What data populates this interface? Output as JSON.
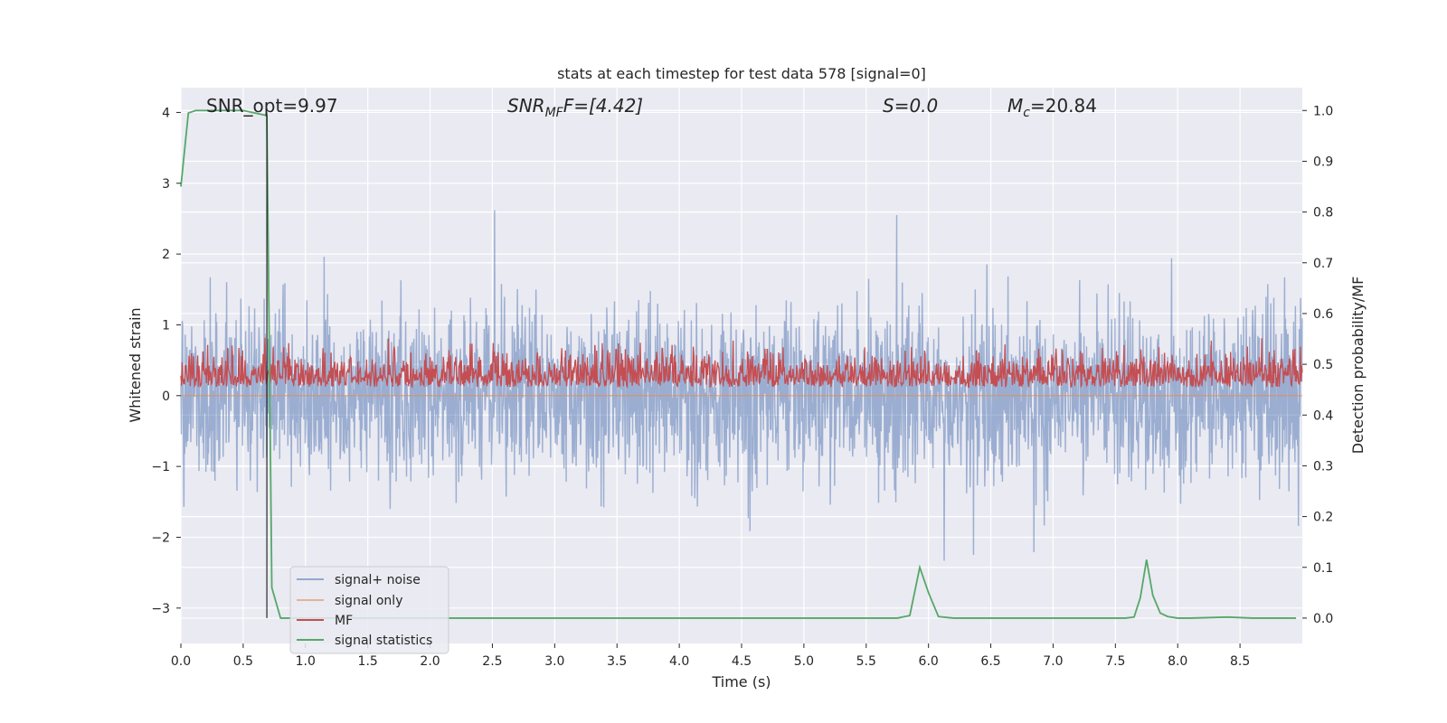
{
  "chart_data": {
    "type": "line",
    "title": "stats at each timestep for test data 578 [signal=0]",
    "xlabel": "Time (s)",
    "ylabel_left": "Whitened strain",
    "ylabel_right": "Detection probability/MF",
    "xlim": [
      0.0,
      9.0
    ],
    "ylim_left": [
      -3.5,
      4.35
    ],
    "ylim_right": [
      -0.05,
      1.045
    ],
    "x_ticks": [
      "0.0",
      "0.5",
      "1.0",
      "1.5",
      "2.0",
      "2.5",
      "3.0",
      "3.5",
      "4.0",
      "4.5",
      "5.0",
      "5.5",
      "6.0",
      "6.5",
      "7.0",
      "7.5",
      "8.0",
      "8.5"
    ],
    "y_left_ticks": [
      "−3",
      "−2",
      "−1",
      "0",
      "1",
      "2",
      "3",
      "4"
    ],
    "y_right_ticks": [
      "0.0",
      "0.1",
      "0.2",
      "0.3",
      "0.4",
      "0.5",
      "0.6",
      "0.7",
      "0.8",
      "0.9",
      "1.0"
    ],
    "grid": true,
    "annotations": [
      {
        "id": "snr_opt",
        "text": "SNR_opt=9.97"
      },
      {
        "id": "snr_mf",
        "text": "SNR",
        "sub": "MF",
        "suffix": "F=[4.42]"
      },
      {
        "id": "s",
        "text": "S=0.0"
      },
      {
        "id": "mc",
        "text": "M",
        "sub": "c",
        "suffix": "=20.84"
      }
    ],
    "vertical_marker_x": 0.69,
    "legend": {
      "placement": "lower-left",
      "entries": [
        {
          "label": "signal+ noise",
          "color": "#4c72b0"
        },
        {
          "label": "signal only",
          "color": "#dd8452"
        },
        {
          "label": "MF",
          "color": "#c44e52"
        },
        {
          "label": "signal statistics",
          "color": "#55a868"
        }
      ]
    },
    "series": [
      {
        "name": "signal+ noise",
        "axis": "left",
        "color": "#4c72b0",
        "alpha": 0.5,
        "description_values": "noise approximately in [-3.2, 4.0], centered near 0, std ~0.9"
      },
      {
        "name": "signal only",
        "axis": "left",
        "color": "#dd8452",
        "values_constant": 0.0
      },
      {
        "name": "MF",
        "axis": "right",
        "color": "#c44e52",
        "description_values": "band approximately between 0.45 and 0.58, peaks near 0.61"
      },
      {
        "name": "signal statistics",
        "axis": "right",
        "color": "#55a868",
        "x": [
          0.0,
          0.06,
          0.12,
          0.18,
          0.3,
          0.5,
          0.69,
          0.73,
          0.8,
          0.85,
          1.0,
          2.0,
          3.0,
          4.0,
          5.0,
          5.75,
          5.85,
          5.93,
          6.0,
          6.08,
          6.2,
          7.0,
          7.5,
          7.58,
          7.65,
          7.7,
          7.75,
          7.8,
          7.86,
          7.92,
          8.0,
          8.1,
          8.4,
          8.6,
          8.95
        ],
        "y": [
          0.85,
          0.995,
          1.0,
          1.0,
          1.0,
          1.0,
          0.99,
          0.06,
          0.0,
          0.0,
          0.0,
          0.0,
          0.0,
          0.0,
          0.0,
          0.0,
          0.005,
          0.1,
          0.05,
          0.003,
          0.0,
          0.0,
          0.0,
          0.0,
          0.002,
          0.04,
          0.115,
          0.045,
          0.01,
          0.003,
          0.0,
          0.0,
          0.002,
          0.0,
          0.0
        ]
      }
    ]
  }
}
